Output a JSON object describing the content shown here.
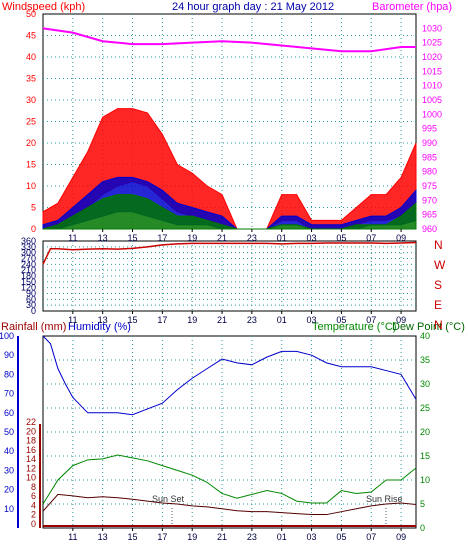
{
  "colors": {
    "wind": "#ff0000",
    "wind_dir": "#cc0000",
    "gust": "#0000cc",
    "avg": "#007700",
    "barometer": "#ff00ff",
    "rainfall": "#990000",
    "humidity": "#0000cc",
    "temperature": "#008800",
    "dewpoint": "#550000",
    "title": "#0000aa",
    "plot_bg": "#ffffff",
    "grid": "#2a9b9b"
  },
  "header": {
    "wind_label": "Windspeed (kph)",
    "title": "24 hour graph day : 21 May 2012",
    "baro_label": "Barometer (hpa)"
  },
  "bottom_header": {
    "rain_label": "Rainfall (mm)",
    "humidity_label": "Humidity (%)",
    "temp_label": "Temperature (°C)",
    "dew_label": "Dew Point (°C)"
  },
  "annotations": {
    "sunset": "Sun Set",
    "sunrise": "Sun Rise"
  },
  "chart_data": [
    {
      "type": "line",
      "panel": "wind_barometer",
      "x_ticks": [
        "11",
        "13",
        "15",
        "17",
        "19",
        "21",
        "23",
        "01",
        "03",
        "05",
        "07",
        "09"
      ],
      "left_axis": {
        "title": "Windspeed (kph)",
        "ylim": [
          0,
          50
        ],
        "ticks": [
          0,
          5,
          10,
          15,
          20,
          25,
          30,
          35,
          40,
          45,
          50
        ]
      },
      "right_axis": {
        "title": "Barometer (hpa)",
        "ylim": [
          960,
          1035
        ],
        "ticks": [
          960,
          965,
          970,
          975,
          980,
          985,
          990,
          995,
          1000,
          1005,
          1010,
          1015,
          1020,
          1025,
          1030
        ]
      },
      "grid": true,
      "series": [
        {
          "name": "Windspeed (kph)",
          "axis": "left",
          "hours": [
            0,
            1,
            2,
            3,
            4,
            5,
            6,
            7,
            8,
            9,
            10,
            11,
            12,
            13,
            14,
            15,
            16,
            17,
            18,
            19,
            20,
            21,
            22,
            23,
            24,
            25
          ],
          "max": [
            4,
            6,
            12,
            18,
            26,
            28,
            28,
            27,
            22,
            15,
            13,
            10,
            8,
            0,
            0,
            0,
            8,
            8,
            2,
            2,
            2,
            5,
            8,
            8,
            12,
            20
          ],
          "min": [
            0,
            0,
            2,
            5,
            8,
            10,
            11,
            10,
            7,
            4,
            3,
            2,
            1,
            0,
            0,
            0,
            2,
            2,
            0,
            0,
            0,
            1,
            2,
            2,
            3,
            6
          ]
        },
        {
          "name": "",
          "axis": "left",
          "hours": [
            0,
            1,
            2,
            3,
            4,
            5,
            6,
            7,
            8,
            9,
            10,
            11,
            12,
            13,
            14,
            15,
            16,
            17,
            18,
            19,
            20,
            21,
            22,
            23,
            24,
            25
          ],
          "max": [
            1,
            2,
            5,
            8,
            11,
            12,
            12,
            11,
            9,
            6,
            5,
            4,
            3,
            0,
            0,
            0,
            3,
            3,
            1,
            1,
            1,
            2,
            3,
            3,
            5,
            9
          ],
          "min": [
            0,
            0,
            1,
            2,
            3,
            4,
            4,
            3,
            2,
            1,
            1,
            1,
            0,
            0,
            0,
            0,
            1,
            1,
            0,
            0,
            0,
            0,
            1,
            1,
            1,
            2
          ]
        },
        {
          "name": "",
          "axis": "left",
          "hours": [
            0,
            1,
            2,
            3,
            4,
            5,
            6,
            7,
            8,
            9,
            10,
            11,
            12,
            13,
            14,
            15,
            16,
            17,
            18,
            19,
            20,
            21,
            22,
            23,
            24,
            25
          ],
          "max": [
            0,
            1,
            3,
            5,
            7,
            8,
            8,
            7,
            5,
            3,
            3,
            2,
            1,
            0,
            0,
            0,
            1,
            1,
            0,
            0,
            0,
            1,
            1,
            1,
            3,
            6
          ],
          "min": [
            0,
            0,
            0,
            0,
            0,
            0,
            0,
            0,
            0,
            0,
            0,
            0,
            0,
            0,
            0,
            0,
            0,
            0,
            0,
            0,
            0,
            0,
            0,
            0,
            0,
            0
          ]
        },
        {
          "name": "Barometer (hpa)",
          "axis": "right",
          "hours": [
            0,
            2,
            4,
            6,
            8,
            10,
            12,
            14,
            16,
            18,
            20,
            22,
            24,
            25
          ],
          "values": [
            1030,
            1028.5,
            1025.5,
            1024.5,
            1024.5,
            1025,
            1025.5,
            1025,
            1024,
            1023,
            1022,
            1022,
            1023.5,
            1023.5
          ]
        }
      ]
    },
    {
      "type": "line",
      "panel": "wind_direction",
      "x_ticks": [
        "11",
        "13",
        "15",
        "17",
        "19",
        "21",
        "23",
        "01",
        "03",
        "05",
        "07",
        "09"
      ],
      "left_axis": {
        "ylim": [
          0,
          360
        ],
        "ticks": [
          0,
          30,
          60,
          90,
          120,
          150,
          180,
          210,
          240,
          270,
          300,
          330,
          360
        ]
      },
      "right_axis": {
        "labels": [
          "N",
          "W",
          "S",
          "E",
          "N"
        ],
        "values": [
          360,
          270,
          180,
          90,
          0
        ]
      },
      "grid": true,
      "series": [
        {
          "name": "",
          "hours": [
            0,
            0.5,
            1,
            2,
            3,
            4,
            5,
            6,
            7,
            8,
            9,
            10,
            11,
            12,
            13,
            14,
            15,
            16,
            17,
            18,
            19,
            20,
            21,
            22,
            23,
            24,
            25
          ],
          "values": [
            240,
            320,
            320,
            315,
            318,
            320,
            318,
            322,
            330,
            340,
            345,
            348,
            348,
            348,
            348,
            348,
            348,
            345,
            348,
            348,
            350,
            350,
            350,
            350,
            348,
            350,
            352
          ]
        }
      ]
    },
    {
      "type": "line",
      "panel": "rain_humidity_temperature",
      "x_ticks": [
        "11",
        "13",
        "15",
        "17",
        "19",
        "21",
        "23",
        "01",
        "03",
        "05",
        "07",
        "09"
      ],
      "left_axis": {
        "title": "Rainfall (mm)",
        "ylim": [
          0,
          100
        ],
        "ticks": [
          0,
          2,
          4,
          6,
          8,
          10,
          12,
          14,
          16,
          18,
          20,
          22
        ]
      },
      "humidity_axis": {
        "title": "Humidity (%)",
        "ylim": [
          0,
          100
        ],
        "ticks": [
          10,
          20,
          30,
          40,
          50,
          60,
          70,
          80,
          90,
          100
        ]
      },
      "right_axis": {
        "title": "Temperature (°C)",
        "ylim": [
          0,
          40
        ],
        "ticks": [
          0,
          5,
          10,
          15,
          20,
          25,
          30,
          35,
          40
        ]
      },
      "grid": true,
      "series": [
        {
          "name": "Rainfall (mm)",
          "axis": "left",
          "hours": [
            0,
            25
          ],
          "values": [
            0,
            0
          ]
        },
        {
          "name": "Humidity (%)",
          "axis": "humidity",
          "hours": [
            0,
            0.5,
            1,
            1.5,
            2,
            3,
            4,
            5,
            6,
            7,
            8,
            9,
            10,
            11,
            12,
            13,
            14,
            15,
            16,
            17,
            18,
            19,
            20,
            21,
            22,
            23,
            24,
            25
          ],
          "values": [
            100,
            96,
            83,
            75,
            68,
            60,
            60,
            60,
            59,
            62,
            65,
            72,
            78,
            83,
            88,
            86,
            85,
            89,
            92,
            92,
            90,
            86,
            84,
            84,
            84,
            82,
            80,
            67
          ]
        },
        {
          "name": "Temperature (°C)",
          "axis": "right",
          "hours": [
            0,
            1,
            2,
            3,
            4,
            5,
            6,
            7,
            8,
            9,
            10,
            11,
            12,
            13,
            14,
            15,
            16,
            17,
            18,
            19,
            20,
            21,
            22,
            23,
            24,
            25
          ],
          "values": [
            5,
            10,
            13,
            14.2,
            14.4,
            15.2,
            14.6,
            14,
            13,
            12,
            11,
            9.5,
            7.2,
            6.2,
            7,
            7.8,
            7.2,
            5.6,
            5.2,
            5.2,
            7.8,
            7.2,
            7.5,
            10,
            10,
            12.5
          ]
        },
        {
          "name": "Dew Point (°C)",
          "axis": "right",
          "hours": [
            0,
            1,
            2,
            3,
            4,
            5,
            6,
            7,
            8,
            9,
            10,
            11,
            12,
            13,
            14,
            15,
            16,
            17,
            18,
            19,
            20,
            21,
            22,
            23,
            24,
            25
          ],
          "values": [
            3.5,
            7,
            6.7,
            6.3,
            6.5,
            6.3,
            6.0,
            5.6,
            5.2,
            5.0,
            4.6,
            4.4,
            4.0,
            3.6,
            3.4,
            3.4,
            3.2,
            3.0,
            2.8,
            2.8,
            3.4,
            4.0,
            4.6,
            5.0,
            5.2,
            4.9
          ]
        }
      ]
    }
  ]
}
